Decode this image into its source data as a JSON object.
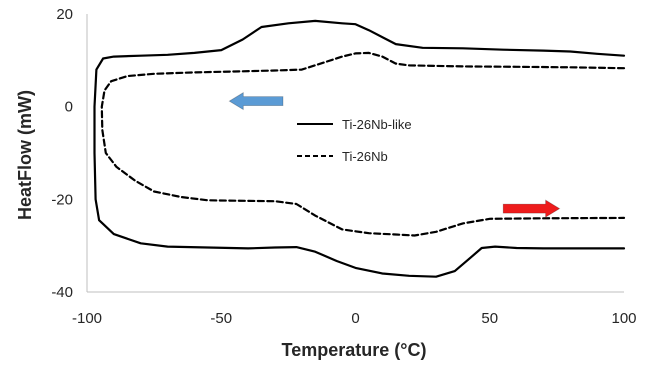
{
  "chart_data": {
    "type": "line",
    "xlabel": "Temperature (°C)",
    "ylabel": "HeatFlow (mW)",
    "xlim": [
      -100,
      100
    ],
    "ylim": [
      -40,
      20
    ],
    "xticks": [
      -100,
      -50,
      0,
      50,
      100
    ],
    "yticks": [
      -40,
      -20,
      0,
      20
    ],
    "grid": false,
    "legend_position": "center",
    "series": [
      {
        "name": "Ti-26Nb-like",
        "style": "solid",
        "color": "#000000",
        "points": [
          [
            100,
            11.0
          ],
          [
            90,
            11.4
          ],
          [
            80,
            11.9
          ],
          [
            70,
            12.1
          ],
          [
            55,
            12.3
          ],
          [
            40,
            12.6
          ],
          [
            25,
            12.7
          ],
          [
            15,
            13.5
          ],
          [
            5,
            16.5
          ],
          [
            0,
            17.8
          ],
          [
            -5,
            18.0
          ],
          [
            -15,
            18.5
          ],
          [
            -25,
            18.0
          ],
          [
            -35,
            17.2
          ],
          [
            -42,
            14.5
          ],
          [
            -50,
            12.2
          ],
          [
            -60,
            11.6
          ],
          [
            -70,
            11.2
          ],
          [
            -80,
            11.0
          ],
          [
            -90,
            10.8
          ],
          [
            -94,
            10.4
          ],
          [
            -96.5,
            8.0
          ],
          [
            -97.2,
            0
          ],
          [
            -97.2,
            -10
          ],
          [
            -96.8,
            -20
          ],
          [
            -95.5,
            -24.5
          ],
          [
            -90,
            -27.5
          ],
          [
            -80,
            -29.5
          ],
          [
            -70,
            -30.2
          ],
          [
            -55,
            -30.4
          ],
          [
            -40,
            -30.6
          ],
          [
            -30,
            -30.4
          ],
          [
            -22,
            -30.3
          ],
          [
            -15,
            -31.3
          ],
          [
            -7,
            -33.3
          ],
          [
            0,
            -34.8
          ],
          [
            10,
            -36.0
          ],
          [
            20,
            -36.5
          ],
          [
            30,
            -36.7
          ],
          [
            37,
            -35.5
          ],
          [
            42,
            -33.0
          ],
          [
            47,
            -30.5
          ],
          [
            52,
            -30.2
          ],
          [
            60,
            -30.5
          ],
          [
            70,
            -30.6
          ],
          [
            85,
            -30.6
          ],
          [
            100,
            -30.6
          ]
        ]
      },
      {
        "name": "Ti-26Nb",
        "style": "dashed",
        "color": "#000000",
        "points": [
          [
            100,
            8.3
          ],
          [
            80,
            8.5
          ],
          [
            60,
            8.6
          ],
          [
            40,
            8.7
          ],
          [
            20,
            8.9
          ],
          [
            15,
            9.3
          ],
          [
            10,
            10.8
          ],
          [
            5,
            11.6
          ],
          [
            0,
            11.5
          ],
          [
            -5,
            10.8
          ],
          [
            -12,
            9.5
          ],
          [
            -20,
            8.0
          ],
          [
            -30,
            7.8
          ],
          [
            -45,
            7.6
          ],
          [
            -60,
            7.4
          ],
          [
            -75,
            7.1
          ],
          [
            -85,
            6.6
          ],
          [
            -91,
            5.5
          ],
          [
            -93.5,
            3.5
          ],
          [
            -94.5,
            0
          ],
          [
            -94.3,
            -5
          ],
          [
            -93,
            -10
          ],
          [
            -89,
            -13
          ],
          [
            -82,
            -16
          ],
          [
            -75,
            -18.3
          ],
          [
            -65,
            -19.5
          ],
          [
            -55,
            -20.2
          ],
          [
            -45,
            -20.3
          ],
          [
            -30,
            -20.4
          ],
          [
            -22,
            -21.0
          ],
          [
            -15,
            -23.5
          ],
          [
            -5,
            -26.5
          ],
          [
            5,
            -27.3
          ],
          [
            15,
            -27.6
          ],
          [
            22,
            -27.8
          ],
          [
            30,
            -27.0
          ],
          [
            40,
            -25.2
          ],
          [
            50,
            -24.2
          ],
          [
            70,
            -24.1
          ],
          [
            100,
            -24.0
          ]
        ]
      }
    ],
    "annotations": [
      {
        "type": "arrow",
        "direction": "left",
        "color": "#5b9bd5",
        "x": [
          -47,
          -27
        ],
        "y": 1.2
      },
      {
        "type": "arrow",
        "direction": "right",
        "color": "#ee1c1c",
        "x": [
          55,
          76
        ],
        "y": -22
      }
    ]
  }
}
